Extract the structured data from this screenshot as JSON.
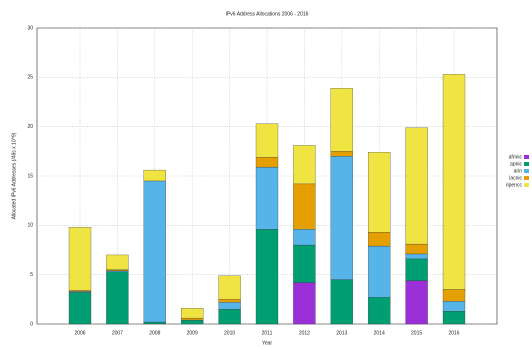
{
  "chart_data": {
    "type": "stacked_bar",
    "title": "IPv6 Address Allocations 2006 - 2016",
    "x_label": "Year",
    "y_label": "Allocated IPv6 Addresses (/48s x 10^9)",
    "categories": [
      "2006",
      "2007",
      "2008",
      "2009",
      "2010",
      "2011",
      "2012",
      "2013",
      "2014",
      "2015",
      "2016"
    ],
    "series": [
      {
        "name": "afrinic",
        "color": "#9b30d9",
        "values": [
          0,
          0,
          0,
          0,
          0,
          0,
          4.2,
          0,
          0,
          4.4,
          0
        ]
      },
      {
        "name": "apnic",
        "color": "#009e73",
        "values": [
          3.2,
          5.3,
          0.2,
          0.4,
          1.5,
          9.6,
          3.8,
          4.5,
          2.7,
          2.2,
          1.3
        ]
      },
      {
        "name": "arin",
        "color": "#56b4e9",
        "values": [
          0.1,
          0.1,
          14.3,
          0,
          0.7,
          6.3,
          1.6,
          12.5,
          5.2,
          0.5,
          1.0
        ]
      },
      {
        "name": "lacnic",
        "color": "#e69f00",
        "values": [
          0.1,
          0.1,
          0,
          0.2,
          0.3,
          1.0,
          4.6,
          0.5,
          1.4,
          1.0,
          1.2
        ]
      },
      {
        "name": "ripencc",
        "color": "#f0e442",
        "values": [
          6.4,
          1.5,
          1.1,
          1.0,
          2.4,
          3.4,
          3.9,
          6.4,
          8.1,
          11.8,
          21.8
        ]
      }
    ],
    "ylim": [
      0,
      30
    ],
    "yticks": [
      0,
      5,
      10,
      15,
      20,
      25,
      30
    ],
    "grid": true
  }
}
